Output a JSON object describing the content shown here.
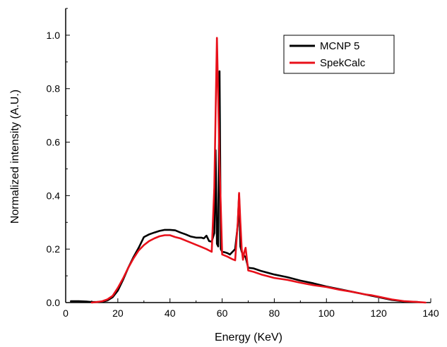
{
  "chart_data": {
    "type": "line",
    "title": "",
    "xlabel": "Energy (KeV)",
    "ylabel": "Normalized intensity (A.U.)",
    "xlim": [
      0,
      140
    ],
    "ylim": [
      0,
      1.1
    ],
    "x_ticks": [
      0,
      20,
      40,
      60,
      80,
      100,
      120,
      140
    ],
    "y_ticks": [
      0.0,
      0.2,
      0.4,
      0.6,
      0.8,
      1.0
    ],
    "x_tick_labels": [
      "0",
      "20",
      "40",
      "60",
      "80",
      "100",
      "120",
      "140"
    ],
    "y_tick_labels": [
      "0.0",
      "0.2",
      "0.4",
      "0.6",
      "0.8",
      "1.0"
    ],
    "grid": false,
    "legend_position": "top-right",
    "series": [
      {
        "name": "MCNP 5",
        "color": "#000000",
        "x": [
          2,
          5,
          8,
          10,
          12,
          14,
          16,
          18,
          20,
          22,
          24,
          26,
          28,
          30,
          32,
          34,
          36,
          38,
          40,
          42,
          44,
          46,
          48,
          50,
          52,
          53,
          54,
          55,
          56,
          57,
          57.5,
          58,
          58.5,
          59,
          59.5,
          60,
          61,
          62,
          63,
          64,
          65,
          66,
          66.5,
          67,
          67.5,
          68,
          69,
          70,
          72,
          75,
          80,
          85,
          90,
          95,
          100,
          105,
          110,
          115,
          120,
          125,
          130,
          135
        ],
        "y": [
          0.005,
          0.005,
          0.004,
          0.002,
          0.002,
          0.003,
          0.008,
          0.02,
          0.045,
          0.085,
          0.13,
          0.17,
          0.205,
          0.245,
          0.255,
          0.262,
          0.268,
          0.272,
          0.272,
          0.27,
          0.262,
          0.255,
          0.247,
          0.243,
          0.243,
          0.24,
          0.25,
          0.23,
          0.228,
          0.26,
          0.57,
          0.22,
          0.21,
          0.865,
          0.2,
          0.19,
          0.188,
          0.185,
          0.18,
          0.19,
          0.2,
          0.29,
          0.405,
          0.21,
          0.19,
          0.18,
          0.17,
          0.13,
          0.128,
          0.118,
          0.105,
          0.095,
          0.082,
          0.072,
          0.06,
          0.05,
          0.04,
          0.03,
          0.02,
          0.01,
          0.004,
          0.002
        ]
      },
      {
        "name": "SpekCalc",
        "color": "#e8101a",
        "x": [
          10,
          12,
          14,
          16,
          18,
          20,
          22,
          24,
          26,
          28,
          30,
          32,
          34,
          36,
          38,
          40,
          42,
          44,
          46,
          48,
          50,
          52,
          54,
          55,
          56,
          57,
          58,
          59,
          60,
          62,
          64,
          65,
          66,
          66.5,
          67,
          67.5,
          68,
          68.5,
          69,
          70,
          72,
          75,
          80,
          85,
          90,
          95,
          100,
          105,
          110,
          115,
          117,
          120,
          125,
          130,
          135,
          138
        ],
        "y": [
          0.0,
          0.002,
          0.005,
          0.012,
          0.025,
          0.055,
          0.09,
          0.13,
          0.165,
          0.195,
          0.215,
          0.23,
          0.24,
          0.248,
          0.252,
          0.252,
          0.245,
          0.24,
          0.232,
          0.224,
          0.216,
          0.208,
          0.2,
          0.195,
          0.19,
          0.43,
          0.99,
          0.52,
          0.18,
          0.172,
          0.162,
          0.158,
          0.3,
          0.41,
          0.3,
          0.2,
          0.16,
          0.19,
          0.205,
          0.12,
          0.115,
          0.105,
          0.092,
          0.085,
          0.074,
          0.065,
          0.058,
          0.048,
          0.04,
          0.03,
          0.028,
          0.022,
          0.012,
          0.005,
          0.002,
          0.0
        ]
      }
    ]
  }
}
